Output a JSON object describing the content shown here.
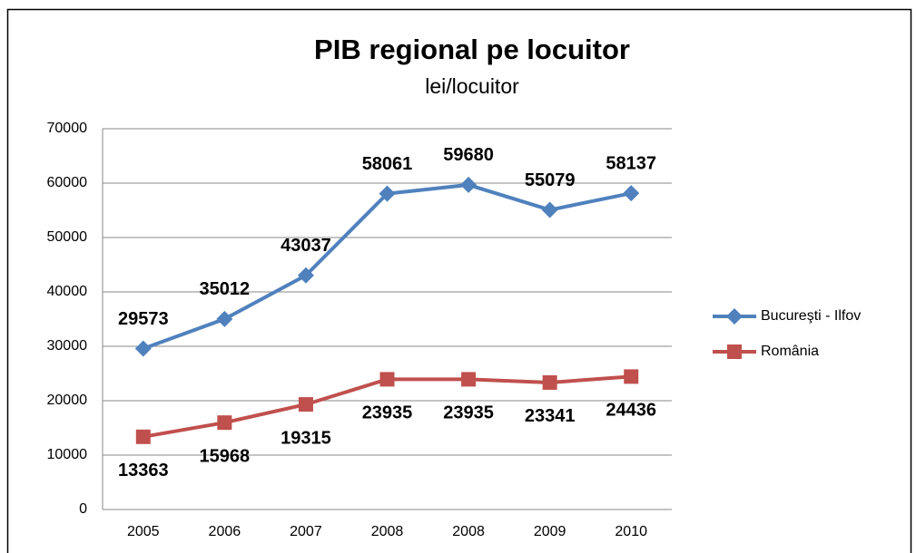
{
  "chart_data": {
    "type": "line",
    "title": "PIB regional pe locuitor",
    "subtitle": "lei/locuitor",
    "categories": [
      "2005",
      "2006",
      "2007",
      "2008",
      "2008",
      "2009",
      "2010"
    ],
    "series": [
      {
        "name": "Bucureşti - Ilfov",
        "color": "#4f81bd",
        "marker": "diamond",
        "values": [
          29573,
          35012,
          43037,
          58061,
          59680,
          55079,
          58137
        ]
      },
      {
        "name": "România",
        "color": "#c0504d",
        "marker": "square",
        "values": [
          13363,
          15968,
          19315,
          23935,
          23935,
          23341,
          24436
        ]
      }
    ],
    "ylim": [
      0,
      70000
    ],
    "yticks": [
      0,
      10000,
      20000,
      30000,
      40000,
      50000,
      60000,
      70000
    ],
    "grid": true,
    "legend": "right"
  }
}
